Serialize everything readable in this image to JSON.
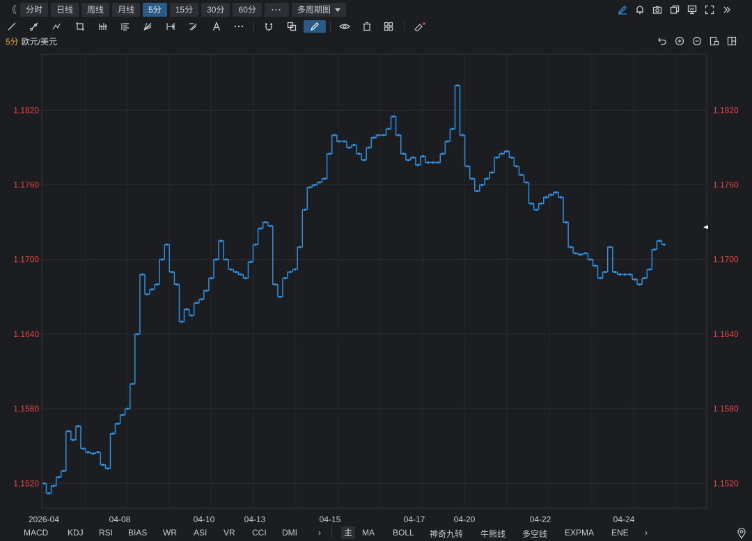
{
  "toolbar": {
    "collapse": "《",
    "periods": [
      "分时",
      "日线",
      "周线",
      "月线",
      "5分",
      "15分",
      "30分",
      "60分"
    ],
    "active_period": "5分",
    "more": "···",
    "multi_period": "多周期图"
  },
  "symbol": {
    "period": "5分",
    "pair": "欧元/美元"
  },
  "indicators_left": [
    "MACD",
    "KDJ",
    "RSI",
    "BIAS",
    "WR",
    "ASI",
    "VR",
    "CCI",
    "DMI"
  ],
  "indicators_right_main": "主",
  "indicators_right": [
    "MA",
    "BOLL",
    "神奇九转",
    "牛熊线",
    "多空线",
    "EXPMA",
    "ENE"
  ],
  "chart_data": {
    "type": "line",
    "title": "",
    "xlabel": "",
    "ylabel": "",
    "ylim": [
      1.15,
      1.1865
    ],
    "y_ticks": [
      "1.1820",
      "1.1760",
      "1.1700",
      "1.1640",
      "1.1580",
      "1.1520"
    ],
    "x_ticks": [
      "2026-04",
      "04-08",
      "04-10",
      "04-13",
      "04-15",
      "04-17",
      "04-20",
      "04-22",
      "04-24"
    ],
    "series": [
      {
        "color": "#2f8fe0",
        "x": [
          "2026-04",
          "04-08",
          "04-10",
          "04-13",
          "04-15",
          "04-17",
          "04-20",
          "04-22",
          "04-24"
        ],
        "points": [
          [
            0,
            1.152
          ],
          [
            1,
            1.1512
          ],
          [
            2,
            1.1518
          ],
          [
            3,
            1.1525
          ],
          [
            4,
            1.153
          ],
          [
            5,
            1.1562
          ],
          [
            6,
            1.1555
          ],
          [
            7,
            1.1566
          ],
          [
            8,
            1.1548
          ],
          [
            9,
            1.1545
          ],
          [
            10,
            1.1544
          ],
          [
            11,
            1.1545
          ],
          [
            12,
            1.1535
          ],
          [
            13,
            1.1532
          ],
          [
            14,
            1.156
          ],
          [
            15,
            1.1568
          ],
          [
            16,
            1.1575
          ],
          [
            17,
            1.158
          ],
          [
            18,
            1.16
          ],
          [
            19,
            1.164
          ],
          [
            20,
            1.1688
          ],
          [
            21,
            1.1672
          ],
          [
            22,
            1.1676
          ],
          [
            23,
            1.168
          ],
          [
            24,
            1.17
          ],
          [
            25,
            1.1712
          ],
          [
            26,
            1.169
          ],
          [
            27,
            1.168
          ],
          [
            28,
            1.165
          ],
          [
            29,
            1.166
          ],
          [
            30,
            1.1655
          ],
          [
            31,
            1.1665
          ],
          [
            32,
            1.1668
          ],
          [
            33,
            1.1675
          ],
          [
            34,
            1.1685
          ],
          [
            35,
            1.17
          ],
          [
            36,
            1.1715
          ],
          [
            37,
            1.17
          ],
          [
            38,
            1.1692
          ],
          [
            39,
            1.169
          ],
          [
            40,
            1.1688
          ],
          [
            41,
            1.1685
          ],
          [
            42,
            1.1698
          ],
          [
            43,
            1.1712
          ],
          [
            44,
            1.1725
          ],
          [
            45,
            1.173
          ],
          [
            46,
            1.1727
          ],
          [
            47,
            1.168
          ],
          [
            48,
            1.167
          ],
          [
            49,
            1.1685
          ],
          [
            50,
            1.169
          ],
          [
            51,
            1.1692
          ],
          [
            52,
            1.171
          ],
          [
            53,
            1.174
          ],
          [
            54,
            1.1758
          ],
          [
            55,
            1.176
          ],
          [
            56,
            1.1762
          ],
          [
            57,
            1.1765
          ],
          [
            58,
            1.1785
          ],
          [
            59,
            1.18
          ],
          [
            60,
            1.1795
          ],
          [
            61,
            1.1795
          ],
          [
            62,
            1.179
          ],
          [
            63,
            1.1792
          ],
          [
            64,
            1.1785
          ],
          [
            65,
            1.178
          ],
          [
            66,
            1.179
          ],
          [
            67,
            1.1798
          ],
          [
            68,
            1.18
          ],
          [
            69,
            1.18
          ],
          [
            70,
            1.1805
          ],
          [
            71,
            1.1815
          ],
          [
            72,
            1.18
          ],
          [
            73,
            1.1785
          ],
          [
            74,
            1.178
          ],
          [
            75,
            1.1782
          ],
          [
            76,
            1.1776
          ],
          [
            77,
            1.1783
          ],
          [
            78,
            1.1778
          ],
          [
            79,
            1.1778
          ],
          [
            80,
            1.1778
          ],
          [
            81,
            1.1785
          ],
          [
            82,
            1.1795
          ],
          [
            83,
            1.1805
          ],
          [
            84,
            1.184
          ],
          [
            85,
            1.18
          ],
          [
            86,
            1.1775
          ],
          [
            87,
            1.1765
          ],
          [
            88,
            1.1755
          ],
          [
            89,
            1.176
          ],
          [
            90,
            1.1765
          ],
          [
            91,
            1.177
          ],
          [
            92,
            1.1782
          ],
          [
            93,
            1.1785
          ],
          [
            94,
            1.1787
          ],
          [
            95,
            1.1782
          ],
          [
            96,
            1.1775
          ],
          [
            97,
            1.1768
          ],
          [
            98,
            1.1762
          ],
          [
            99,
            1.1745
          ],
          [
            100,
            1.174
          ],
          [
            101,
            1.1745
          ],
          [
            102,
            1.175
          ],
          [
            103,
            1.1752
          ],
          [
            104,
            1.1754
          ],
          [
            105,
            1.175
          ],
          [
            106,
            1.173
          ],
          [
            107,
            1.171
          ],
          [
            108,
            1.1705
          ],
          [
            109,
            1.1704
          ],
          [
            110,
            1.1705
          ],
          [
            111,
            1.17
          ],
          [
            112,
            1.1695
          ],
          [
            113,
            1.1685
          ],
          [
            114,
            1.169
          ],
          [
            115,
            1.171
          ],
          [
            116,
            1.169
          ],
          [
            117,
            1.1688
          ],
          [
            118,
            1.1688
          ],
          [
            119,
            1.1688
          ],
          [
            120,
            1.1684
          ],
          [
            121,
            1.168
          ],
          [
            122,
            1.1685
          ],
          [
            123,
            1.1692
          ],
          [
            124,
            1.1708
          ],
          [
            125,
            1.1715
          ],
          [
            126,
            1.1712
          ]
        ]
      }
    ],
    "grid": true,
    "last_value_marker": "right"
  }
}
